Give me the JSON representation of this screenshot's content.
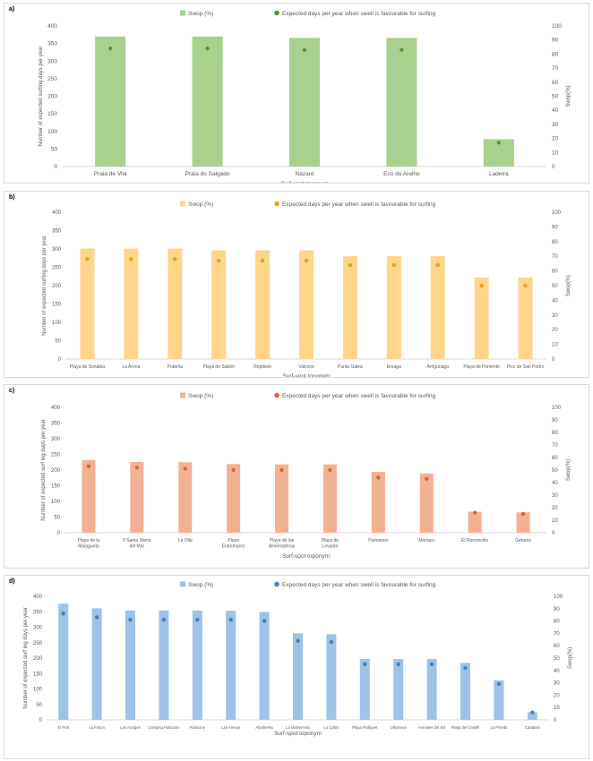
{
  "legend_bar": "Swop (%)",
  "legend_dot": "Expected days per year when swell is favourable for surfing",
  "chart_data": [
    {
      "panel": "a)",
      "type": "bar",
      "bar_color": "#a9d18e",
      "dot_color": "#4f9a2f",
      "categories": [
        "Praia de Vila",
        "Praia do Salgado",
        "Nazaré",
        "Eco do Arelho",
        "Ladeira"
      ],
      "bar_values": [
        370,
        370,
        366,
        366,
        78
      ],
      "dot_values": [
        84,
        84,
        83,
        83,
        17
      ],
      "ylabel": "Number of expected surfing days per year",
      "y2label": "Swop(%)",
      "xlabel": "Surf-spot toponym",
      "ylim": [
        0,
        400
      ],
      "yticks": [
        0,
        50,
        100,
        150,
        200,
        250,
        300,
        350,
        400
      ],
      "y2lim": [
        0,
        100
      ],
      "y2ticks": [
        0,
        10,
        20,
        30,
        40,
        50,
        60,
        70,
        80,
        90,
        100
      ]
    },
    {
      "panel": "b)",
      "type": "bar",
      "bar_color": "#ffd58a",
      "dot_color": "#e8a317",
      "categories": [
        "Playa de Sonabia",
        "La Arena",
        "Pobeña",
        "Playa de Sabón",
        "Repibelo",
        "Valcovo",
        "Punta Galea",
        "Ereaga",
        "Arrigunaga",
        "Playa de Poniente",
        "Pico de San Pedro"
      ],
      "bar_values": [
        301,
        301,
        301,
        296,
        296,
        296,
        280,
        280,
        280,
        222,
        222
      ],
      "dot_values": [
        68,
        68,
        68,
        67,
        67,
        67,
        64,
        64,
        64,
        50,
        50
      ],
      "ylabel": "Number of expected surfing days per year",
      "y2label": "Swop(%)",
      "xlabel": "Surf-spot toponym",
      "ylim": [
        0,
        400
      ],
      "yticks": [
        0,
        50,
        100,
        150,
        200,
        250,
        300,
        350,
        400
      ],
      "y2lim": [
        0,
        100
      ],
      "y2ticks": [
        0,
        10,
        20,
        30,
        40,
        50,
        60,
        70,
        80,
        90,
        100
      ]
    },
    {
      "panel": "c)",
      "type": "bar",
      "bar_color": "#f4b093",
      "dot_color": "#e0642c",
      "categories": [
        "Playa de la Malagueta",
        "P.Santa María del Mar",
        "La Olla",
        "Playa Entremares",
        "Playa de las Almenaderas",
        "Playa de Levante",
        "Palmones",
        "Morlaco",
        "El Rinconcillo",
        "Getares"
      ],
      "bar_values": [
        232,
        226,
        225,
        219,
        218,
        218,
        194,
        189,
        67,
        65
      ],
      "dot_values": [
        53,
        52,
        51,
        50,
        50,
        50,
        44,
        43,
        16,
        15
      ],
      "ylabel": "Number of expected surf ing days per year",
      "y2label": "Swop(%)",
      "xlabel": "Surf-spot toponym",
      "ylim": [
        0,
        400
      ],
      "yticks": [
        0,
        50,
        100,
        150,
        200,
        250,
        300,
        350,
        400
      ],
      "y2lim": [
        0,
        100
      ],
      "y2ticks": [
        0,
        10,
        20,
        30,
        40,
        50,
        60,
        70,
        80,
        90,
        100
      ]
    },
    {
      "panel": "d)",
      "type": "bar",
      "bar_color": "#9dc3e6",
      "dot_color": "#4a7ebb",
      "categories": [
        "El Prat",
        "La Fosca",
        "Las Anclges",
        "Camping Palacone",
        "Palacone",
        "Las Arenas",
        "Albufereta",
        "La Malvarrosa",
        "La Caltro",
        "Playa Podiguet",
        "Urbanova",
        "Arenales del Sol",
        "Platja del Castell",
        "La Pineda",
        "Carabasi"
      ],
      "bar_values": [
        376,
        361,
        354,
        354,
        354,
        353,
        349,
        280,
        277,
        197,
        197,
        197,
        184,
        128,
        25
      ],
      "dot_values": [
        86,
        83,
        81,
        81,
        81,
        81,
        80,
        64,
        63,
        45,
        45,
        45,
        42,
        29,
        6
      ],
      "ylabel": "Number of expected surf ing days per year",
      "y2label": "Swop(%)",
      "xlabel": "Surf-spot toponym",
      "ylim": [
        0,
        400
      ],
      "yticks": [
        0,
        50,
        100,
        150,
        200,
        250,
        300,
        350,
        400
      ],
      "y2lim": [
        0,
        100
      ],
      "y2ticks": [
        0,
        10,
        20,
        30,
        40,
        50,
        60,
        70,
        80,
        90,
        100
      ]
    }
  ]
}
